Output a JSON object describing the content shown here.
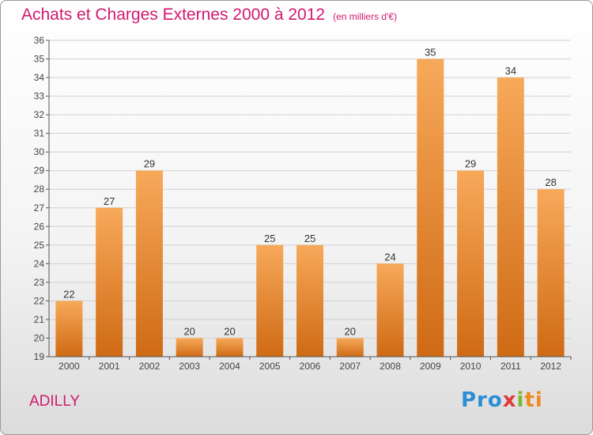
{
  "header": {
    "title": "Achats et Charges Externes 2000 à 2012",
    "unit": "(en milliers d'€)"
  },
  "footer": {
    "commune": "ADILLY",
    "logo_parts": [
      "Pro",
      "x",
      "i",
      "ti"
    ]
  },
  "colors": {
    "title": "#d2196e",
    "bar_top": "#f7a95a",
    "bar_bottom": "#cf6a14",
    "grid": "#d0d0d0",
    "axis": "#555555"
  },
  "chart_data": {
    "type": "bar",
    "categories": [
      "2000",
      "2001",
      "2002",
      "2003",
      "2004",
      "2005",
      "2006",
      "2007",
      "2008",
      "2009",
      "2010",
      "2011",
      "2012"
    ],
    "values": [
      22,
      27,
      29,
      20,
      20,
      25,
      25,
      20,
      24,
      35,
      29,
      34,
      28
    ],
    "ylim": [
      19,
      36
    ],
    "yticks": [
      19,
      20,
      21,
      22,
      23,
      24,
      25,
      26,
      27,
      28,
      29,
      30,
      31,
      32,
      33,
      34,
      35,
      36
    ],
    "grid": true,
    "xlabel": "",
    "ylabel": ""
  }
}
